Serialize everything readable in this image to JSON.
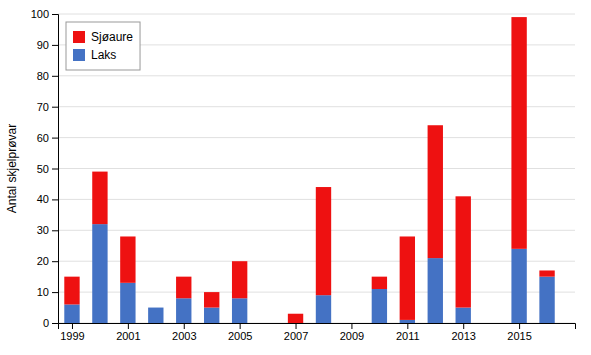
{
  "chart_data": {
    "type": "bar",
    "stacked": true,
    "x": [
      1999,
      2000,
      2001,
      2002,
      2003,
      2004,
      2005,
      2006,
      2007,
      2008,
      2009,
      2010,
      2011,
      2012,
      2013,
      2014,
      2015,
      2016
    ],
    "series": [
      {
        "name": "Laks",
        "color": "#4472c4",
        "values": [
          6,
          32,
          13,
          5,
          8,
          5,
          8,
          0,
          0,
          9,
          0,
          11,
          1,
          21,
          5,
          0,
          24,
          15
        ]
      },
      {
        "name": "Sjøaure",
        "color": "#ee1111",
        "values": [
          9,
          17,
          15,
          0,
          7,
          5,
          12,
          0,
          3,
          35,
          0,
          4,
          27,
          43,
          36,
          0,
          75,
          2
        ]
      }
    ],
    "ylabel": "Antal skjelprøvar",
    "xlim": [
      1998.5,
      2017.0
    ],
    "xticks": [
      1999,
      2001,
      2003,
      2005,
      2007,
      2009,
      2011,
      2013,
      2015
    ],
    "ylim": [
      0,
      100
    ],
    "yticks": [
      0,
      10,
      20,
      30,
      40,
      50,
      60,
      70,
      80,
      90,
      100
    ],
    "grid": true,
    "legend": "upper left"
  }
}
